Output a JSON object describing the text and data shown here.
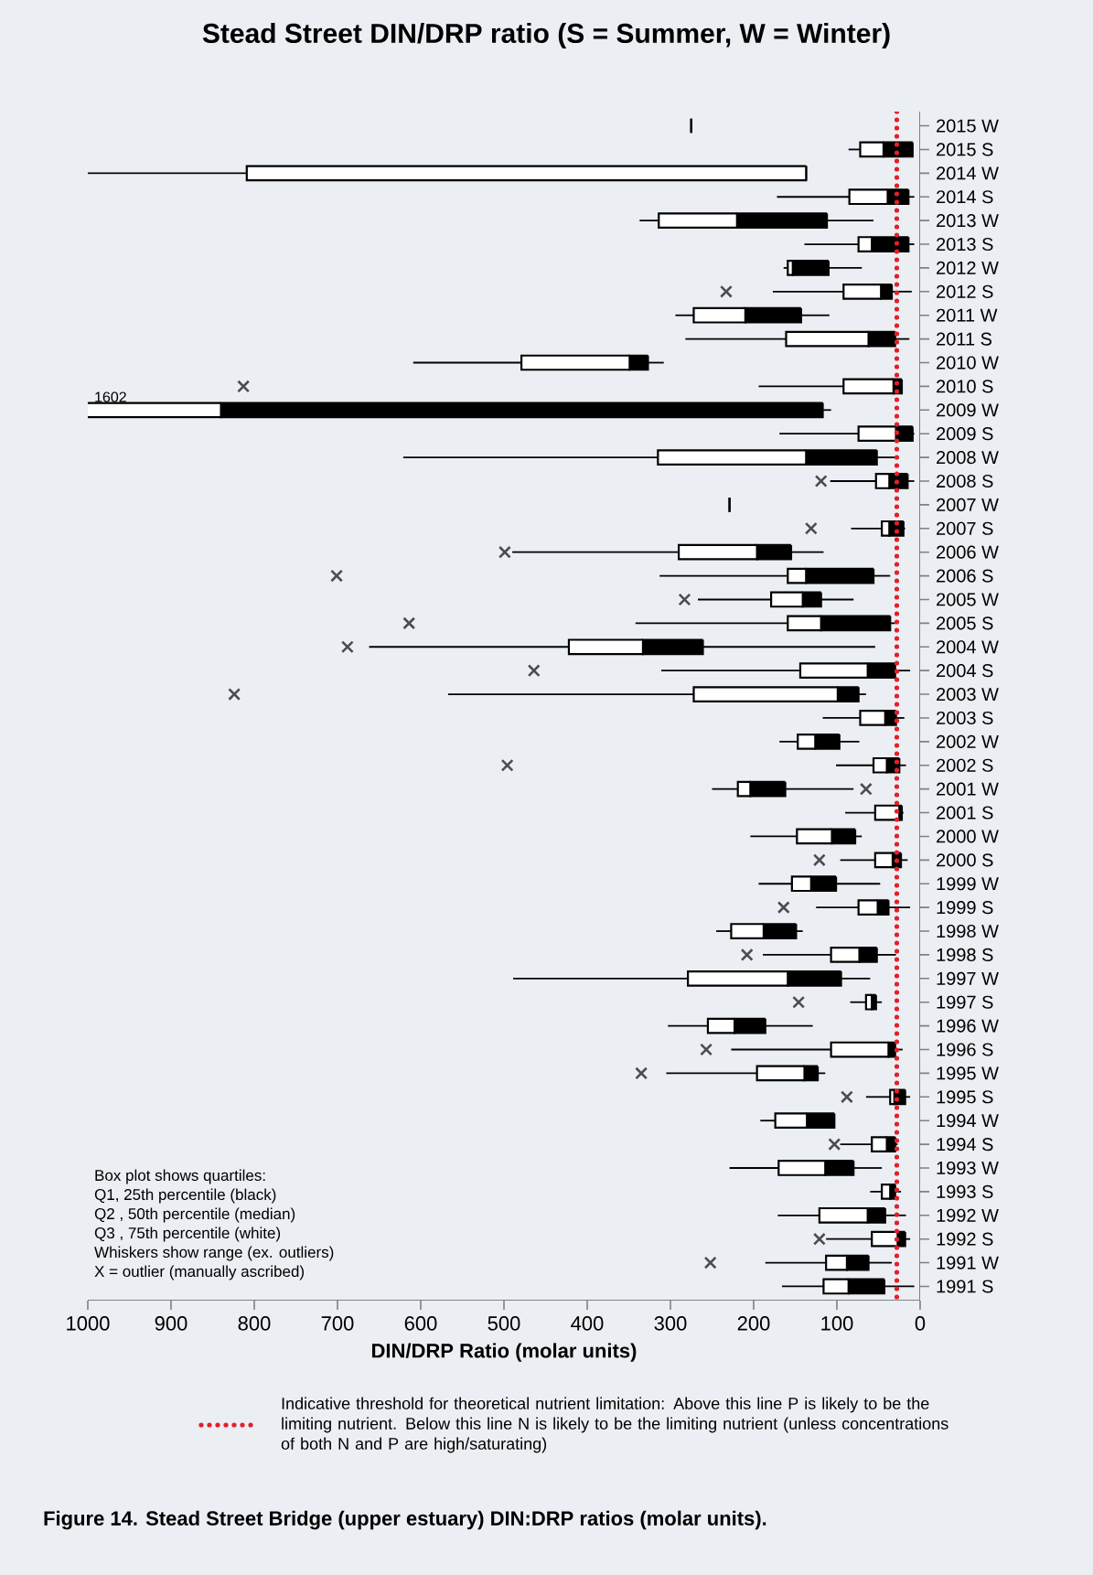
{
  "chart_data": {
    "type": "box",
    "title": "Stead Street DIN/DRP ratio (S = Summer, W = Winter)",
    "xlabel": "DIN/DRP Ratio (molar units)",
    "orientation": "horizontal",
    "marker": "cross",
    "categories": [
      "2015 W",
      "2015 S",
      "2014 W",
      "2014 S",
      "2013 W",
      "2013 S",
      "2012 W",
      "2012 S",
      "2011 W",
      "2011 S",
      "2010 W",
      "2010 S",
      "2009 W",
      "2009 S",
      "2008 W",
      "2008 S",
      "2007 W",
      "2007 S",
      "2006 W",
      "2006 S",
      "2005 W",
      "2005 S",
      "2004 W",
      "2004 S",
      "2003 W",
      "2003 S",
      "2002 W",
      "2002 S",
      "2001 W",
      "2001 S",
      "2000 W",
      "2000 S",
      "1999 W",
      "1999 S",
      "1998 W",
      "1998 S",
      "1997 W",
      "1997 S",
      "1996 W",
      "1996 S",
      "1995 W",
      "1995 S",
      "1994 W",
      "1994 S",
      "1993 W",
      "1993 S",
      "1992 W",
      "1992 S",
      "1991 W",
      "1991 S"
    ],
    "boxes": [
      {
        "low": 275,
        "q1": 275,
        "median": 275,
        "q3": 275,
        "high": 275
      },
      {
        "low": 9,
        "q1": 9,
        "median": 44,
        "q3": 72,
        "high": 86
      },
      {
        "low": 137,
        "q1": 137,
        "median": 137,
        "q3": 809,
        "high": 1000
      },
      {
        "low": 7,
        "q1": 14,
        "median": 39,
        "q3": 85,
        "high": 172
      },
      {
        "low": 56,
        "q1": 112,
        "median": 220,
        "q3": 314,
        "high": 337
      },
      {
        "low": 7,
        "q1": 14,
        "median": 58,
        "q3": 74,
        "high": 139
      },
      {
        "low": 70,
        "q1": 110,
        "median": 153,
        "q3": 159,
        "high": 164
      },
      {
        "low": 10,
        "q1": 34,
        "median": 47,
        "q3": 92,
        "high": 177,
        "outliers": [
          233
        ]
      },
      {
        "low": 109,
        "q1": 143,
        "median": 210,
        "q3": 272,
        "high": 294
      },
      {
        "low": 13,
        "q1": 30,
        "median": 62,
        "q3": 161,
        "high": 282
      },
      {
        "low": 308,
        "q1": 327,
        "median": 349,
        "q3": 479,
        "high": 609
      },
      {
        "low": 22,
        "q1": 22,
        "median": 32,
        "q3": 92,
        "high": 194,
        "outliers": [
          813
        ]
      },
      {
        "low": 107,
        "q1": 117,
        "median": 840,
        "q3": 1602,
        "high": 1602
      },
      {
        "low": 7,
        "q1": 9,
        "median": 29,
        "q3": 74,
        "high": 169
      },
      {
        "low": 29,
        "q1": 52,
        "median": 137,
        "q3": 315,
        "high": 621
      },
      {
        "low": 7,
        "q1": 15,
        "median": 37,
        "q3": 53,
        "high": 108,
        "outliers": [
          119
        ]
      },
      {
        "low": 229,
        "q1": 229,
        "median": 229,
        "q3": 229,
        "high": 229
      },
      {
        "low": 18,
        "q1": 20,
        "median": 37,
        "q3": 46,
        "high": 83,
        "outliers": [
          131
        ]
      },
      {
        "low": 116,
        "q1": 155,
        "median": 196,
        "q3": 290,
        "high": 490,
        "outliers": [
          499
        ]
      },
      {
        "low": 36,
        "q1": 56,
        "median": 137,
        "q3": 159,
        "high": 313,
        "outliers": [
          701
        ]
      },
      {
        "low": 80,
        "q1": 119,
        "median": 141,
        "q3": 179,
        "high": 267,
        "outliers": [
          283
        ]
      },
      {
        "low": 30,
        "q1": 36,
        "median": 119,
        "q3": 159,
        "high": 342,
        "outliers": [
          614
        ]
      },
      {
        "low": 54,
        "q1": 261,
        "median": 333,
        "q3": 422,
        "high": 662,
        "outliers": [
          688
        ]
      },
      {
        "low": 12,
        "q1": 30,
        "median": 63,
        "q3": 144,
        "high": 311,
        "outliers": [
          464
        ]
      },
      {
        "low": 65,
        "q1": 74,
        "median": 99,
        "q3": 272,
        "high": 567,
        "outliers": [
          824
        ]
      },
      {
        "low": 19,
        "q1": 29,
        "median": 42,
        "q3": 72,
        "high": 117
      },
      {
        "low": 73,
        "q1": 97,
        "median": 126,
        "q3": 147,
        "high": 169
      },
      {
        "low": 17,
        "q1": 25,
        "median": 40,
        "q3": 56,
        "high": 101,
        "outliers": [
          496
        ]
      },
      {
        "low": 80,
        "q1": 162,
        "median": 204,
        "q3": 219,
        "high": 250,
        "outliers": [
          65
        ]
      },
      {
        "low": 20,
        "q1": 22,
        "median": 25,
        "q3": 54,
        "high": 90
      },
      {
        "low": 70,
        "q1": 78,
        "median": 106,
        "q3": 148,
        "high": 204
      },
      {
        "low": 15,
        "q1": 23,
        "median": 33,
        "q3": 54,
        "high": 96,
        "outliers": [
          121
        ]
      },
      {
        "low": 48,
        "q1": 101,
        "median": 131,
        "q3": 154,
        "high": 194
      },
      {
        "low": 12,
        "q1": 38,
        "median": 51,
        "q3": 74,
        "high": 125,
        "outliers": [
          164
        ]
      },
      {
        "low": 141,
        "q1": 149,
        "median": 188,
        "q3": 227,
        "high": 245
      },
      {
        "low": 29,
        "q1": 52,
        "median": 73,
        "q3": 107,
        "high": 189,
        "outliers": [
          208
        ]
      },
      {
        "low": 60,
        "q1": 95,
        "median": 159,
        "q3": 279,
        "high": 489
      },
      {
        "low": 46,
        "q1": 53,
        "median": 58,
        "q3": 65,
        "high": 84,
        "outliers": [
          146
        ]
      },
      {
        "low": 129,
        "q1": 186,
        "median": 223,
        "q3": 255,
        "high": 303
      },
      {
        "low": 21,
        "q1": 30,
        "median": 38,
        "q3": 107,
        "high": 227,
        "outliers": [
          257
        ]
      },
      {
        "low": 114,
        "q1": 123,
        "median": 139,
        "q3": 196,
        "high": 305,
        "outliers": [
          335
        ]
      },
      {
        "low": 12,
        "q1": 18,
        "median": 31,
        "q3": 36,
        "high": 65,
        "outliers": [
          88
        ]
      },
      {
        "low": 103,
        "q1": 103,
        "median": 136,
        "q3": 174,
        "high": 192
      },
      {
        "low": 27,
        "q1": 30,
        "median": 40,
        "q3": 58,
        "high": 96,
        "outliers": [
          103
        ]
      },
      {
        "low": 46,
        "q1": 80,
        "median": 114,
        "q3": 170,
        "high": 229
      },
      {
        "low": 23,
        "q1": 30,
        "median": 36,
        "q3": 46,
        "high": 60
      },
      {
        "low": 17,
        "q1": 42,
        "median": 63,
        "q3": 121,
        "high": 171
      },
      {
        "low": 12,
        "q1": 18,
        "median": 27,
        "q3": 58,
        "high": 113,
        "outliers": [
          121
        ]
      },
      {
        "low": 34,
        "q1": 62,
        "median": 88,
        "q3": 113,
        "high": 186,
        "outliers": [
          252
        ]
      },
      {
        "low": 7,
        "q1": 43,
        "median": 86,
        "q3": 116,
        "high": 166
      }
    ],
    "xlim": [
      1000,
      0
    ],
    "xticks": [
      0,
      100,
      200,
      300,
      400,
      500,
      600,
      700,
      800,
      900,
      1000
    ],
    "ref_lines": [
      {
        "axis": "x",
        "value": 28,
        "color": "#e0202a",
        "line_style": "dotted",
        "label": "Indicative threshold for theoretical nutrient limitation: Above this line P is likely to be the limiting nutrient. Below this line N is likely to be the limiting nutrient (unless concentrations of both N and P are high/saturating)"
      }
    ],
    "annotations": [
      "Box plot shows quartiles:",
      "Q1, 25th percentile (black)",
      "Q2 , 50th percentile (median)",
      "Q3 , 75th percentile (white)",
      "Whiskers show range (ex. outliers)",
      "X = outlier (manually ascribed)",
      "1602",
      "Figure 14.  Stead Street Bridge (upper estuary) DIN:DRP ratios (molar units)."
    ]
  }
}
